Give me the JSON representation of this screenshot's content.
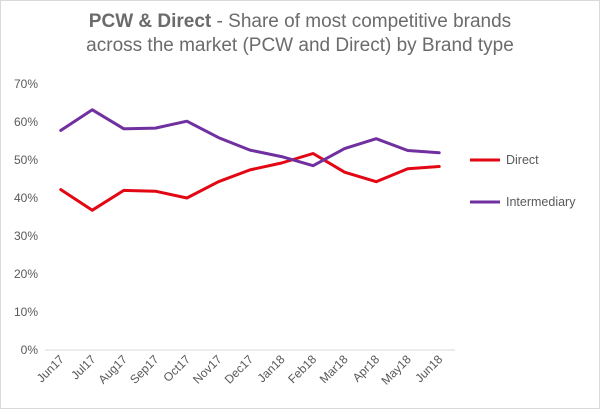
{
  "chart_data": {
    "type": "line",
    "title_bold": "PCW & Direct",
    "title_rest": " - Share of most competitive brands",
    "title_line2": "across the market (PCW and Direct) by Brand type",
    "categories": [
      "Jun17",
      "Jul17",
      "Aug17",
      "Sep17",
      "Oct17",
      "Nov17",
      "Dec17",
      "Jan18",
      "Feb18",
      "Mar18",
      "Apr18",
      "May18",
      "Jun18"
    ],
    "series": [
      {
        "name": "Direct",
        "color": "#e30613",
        "values": [
          42.2,
          36.8,
          42.0,
          41.8,
          40.0,
          44.3,
          47.4,
          49.2,
          51.7,
          46.8,
          44.3,
          47.7,
          48.3
        ]
      },
      {
        "name": "Intermediary",
        "color": "#7030a0",
        "values": [
          57.8,
          63.2,
          58.2,
          58.4,
          60.2,
          55.9,
          52.6,
          50.9,
          48.5,
          53.0,
          55.6,
          52.5,
          51.9
        ]
      }
    ],
    "yticks": [
      "0%",
      "10%",
      "20%",
      "30%",
      "40%",
      "50%",
      "60%",
      "70%"
    ],
    "ylim": [
      0,
      70
    ],
    "grid": false,
    "legend_position": "right"
  }
}
